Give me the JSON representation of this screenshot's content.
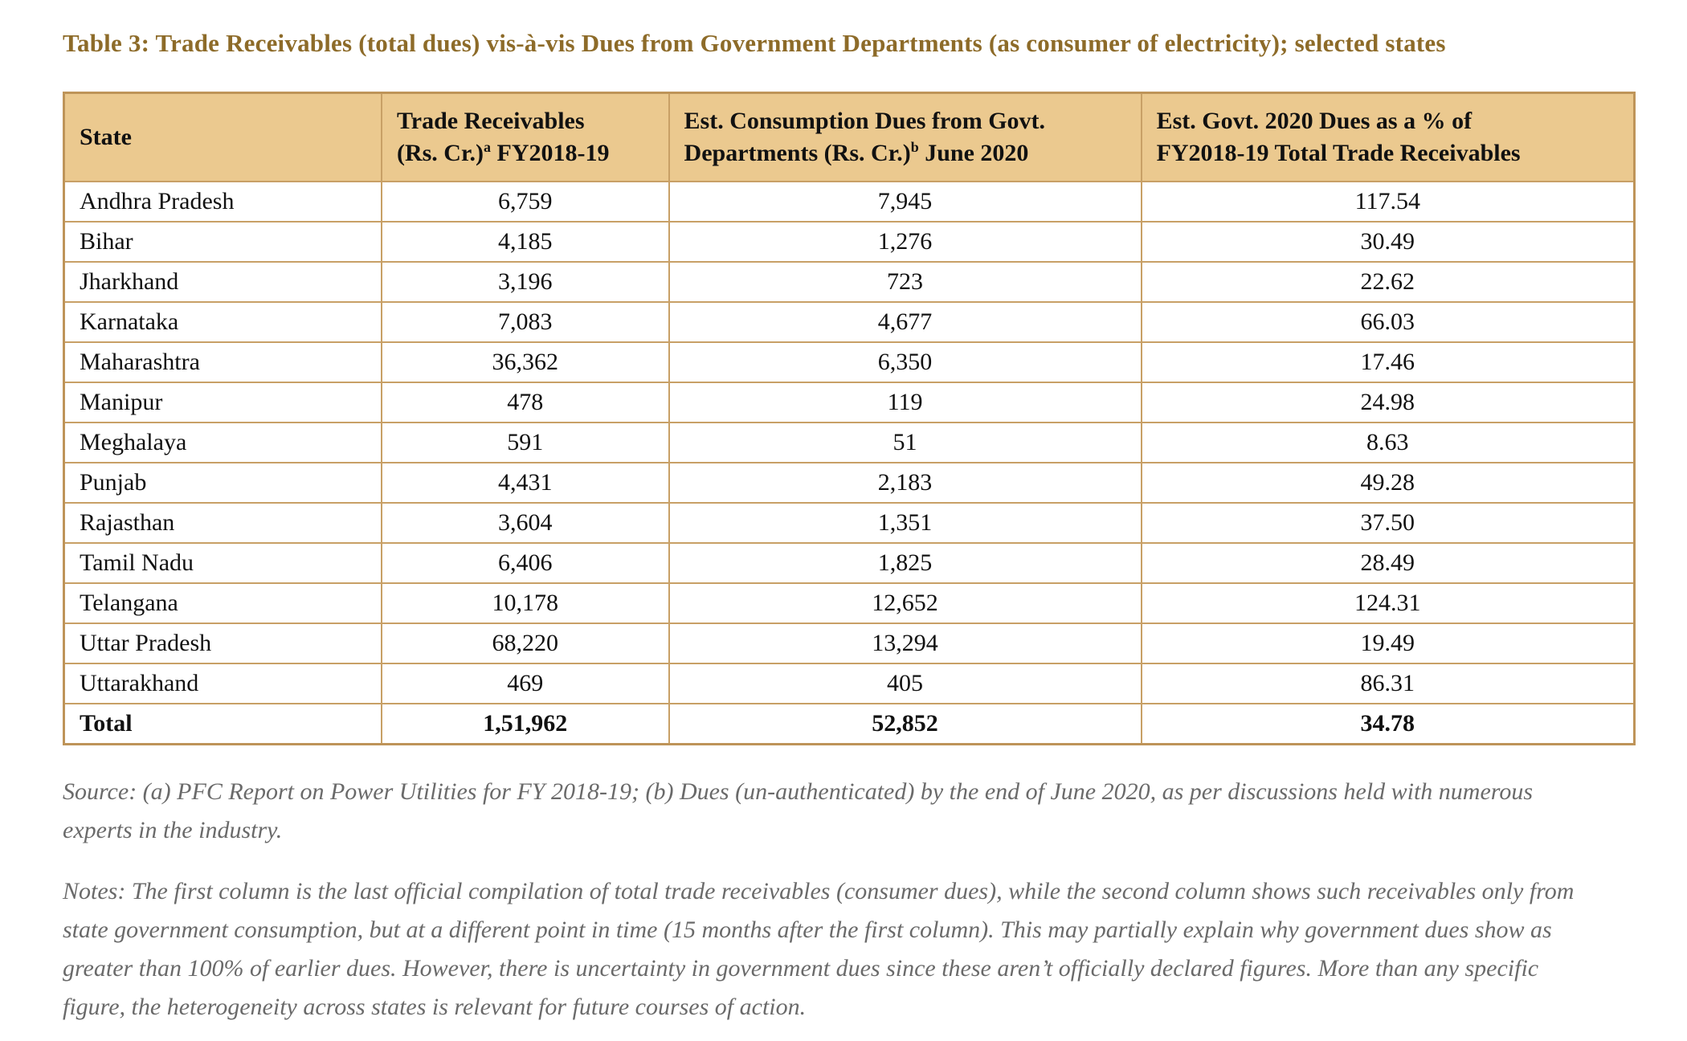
{
  "title": "Table 3: Trade Receivables (total dues) vis-à-vis Dues from Government Departments (as consumer of electricity); selected states",
  "table": {
    "headers": {
      "state": "State",
      "col2": {
        "line1": "Trade Receivables",
        "line2_pre": "(Rs. Cr.)",
        "sup": "a",
        "line2_post": " FY2018-19"
      },
      "col3": {
        "line1": "Est. Consumption Dues from Govt.",
        "line2_pre": "Departments (Rs. Cr.)",
        "sup": "b",
        "line2_post": " June 2020"
      },
      "col4": {
        "line1": "Est. Govt. 2020 Dues as a % of",
        "line2": "FY2018-19 Total Trade Receivables"
      }
    },
    "rows": [
      {
        "state": "Andhra Pradesh",
        "values": [
          "6,759",
          "7,945",
          "117.54"
        ]
      },
      {
        "state": "Bihar",
        "values": [
          "4,185",
          "1,276",
          "30.49"
        ]
      },
      {
        "state": "Jharkhand",
        "values": [
          "3,196",
          "723",
          "22.62"
        ]
      },
      {
        "state": "Karnataka",
        "values": [
          "7,083",
          "4,677",
          "66.03"
        ]
      },
      {
        "state": "Maharashtra",
        "values": [
          "36,362",
          "6,350",
          "17.46"
        ]
      },
      {
        "state": "Manipur",
        "values": [
          "478",
          "119",
          "24.98"
        ]
      },
      {
        "state": "Meghalaya",
        "values": [
          "591",
          "51",
          "8.63"
        ]
      },
      {
        "state": "Punjab",
        "values": [
          "4,431",
          "2,183",
          "49.28"
        ]
      },
      {
        "state": "Rajasthan",
        "values": [
          "3,604",
          "1,351",
          "37.50"
        ]
      },
      {
        "state": "Tamil Nadu",
        "values": [
          "6,406",
          "1,825",
          "28.49"
        ]
      },
      {
        "state": "Telangana",
        "values": [
          "10,178",
          "12,652",
          "124.31"
        ]
      },
      {
        "state": "Uttar Pradesh",
        "values": [
          "68,220",
          "13,294",
          "19.49"
        ]
      },
      {
        "state": "Uttarakhand",
        "values": [
          "469",
          "405",
          "86.31"
        ]
      }
    ],
    "total_row": {
      "label": "Total",
      "values": [
        "1,51,962",
        "52,852",
        "34.78"
      ]
    }
  },
  "source": "Source: (a) PFC Report on Power Utilities for FY 2018-19; (b) Dues (un-authenticated) by the end of June 2020, as per discussions held with numerous experts in the industry.",
  "notes": "Notes: The first column is the last official compilation of total trade receivables (consumer dues), while the second column shows such receivables only from state government consumption, but at a different point in time (15 months after the first column). This may partially explain why government dues show as greater than 100% of earlier dues. However, there is uncertainty in government dues since these aren’t officially declared figures. More than any specific figure, the heterogeneity across states is relevant for future courses of action.",
  "colors": {
    "title_text": "#8D6B29",
    "header_background": "#EBC98F",
    "table_border": "#C8A066",
    "footnote_text": "#6A6A6A"
  }
}
